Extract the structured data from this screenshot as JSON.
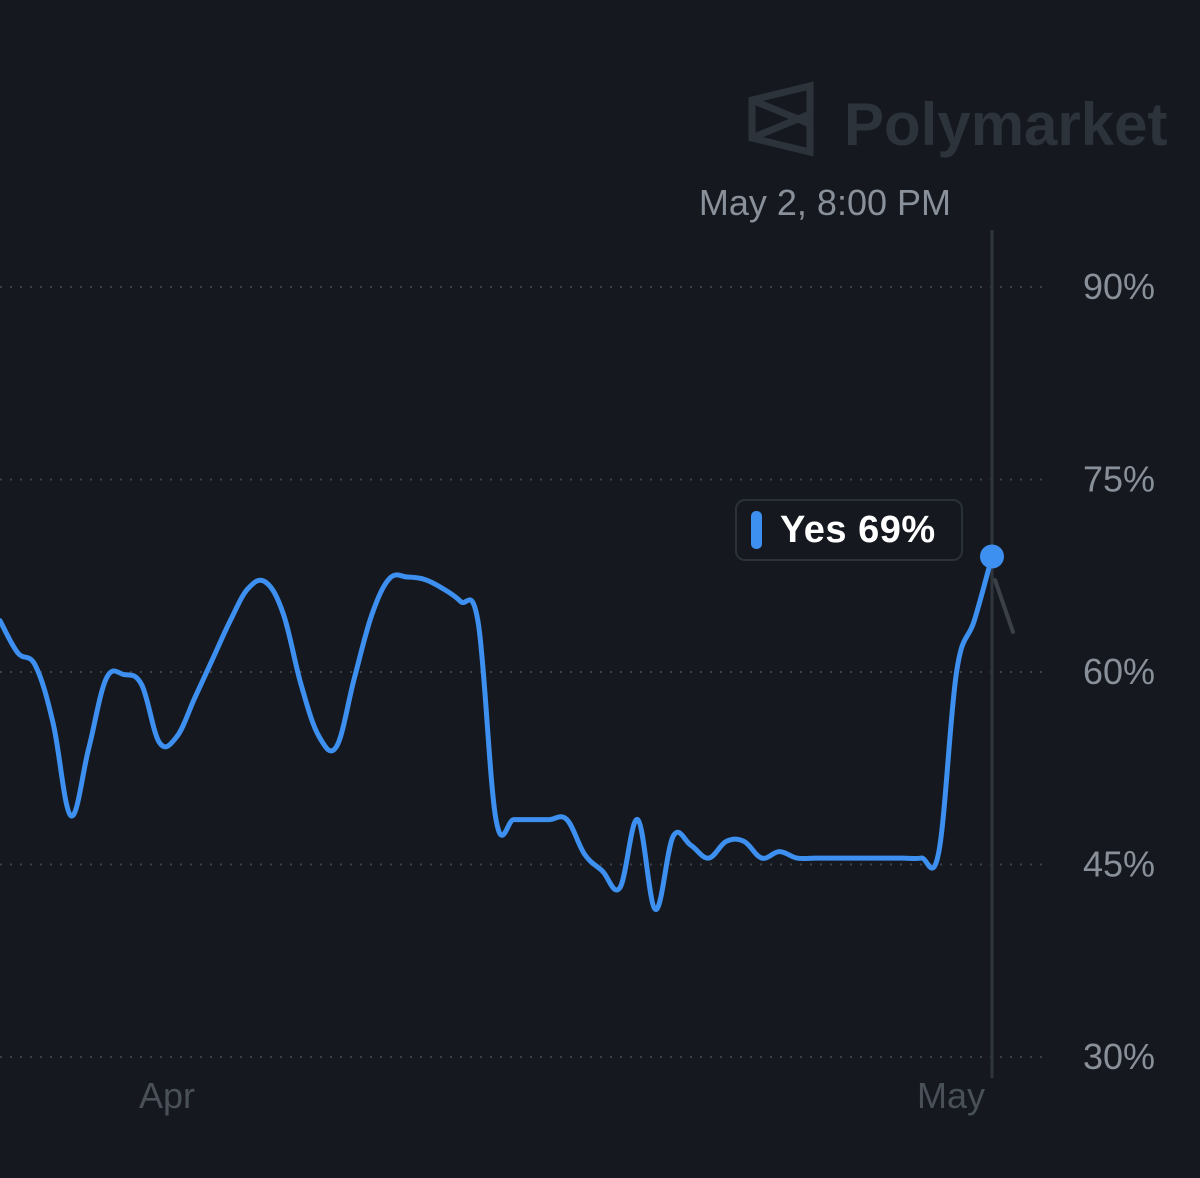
{
  "watermark": {
    "brand": "Polymarket",
    "icon": "polymarket-logo-icon"
  },
  "hover": {
    "date_label": "May 2, 8:00 PM"
  },
  "tooltip": {
    "label": "Yes 69%",
    "series": "Yes",
    "value": 69
  },
  "colors": {
    "background": "#15191f",
    "line": "#3d8ff0",
    "grid": "#3a4048",
    "tick_text": "#8a9099",
    "month_text": "#4a5058",
    "watermark": "#2d333b",
    "hover_text": "#8a9099",
    "crosshair": "#2f353d"
  },
  "chart_data": {
    "type": "line",
    "title": "",
    "xlabel": "",
    "ylabel": "",
    "ylim": [
      30,
      90
    ],
    "yticks": [
      90,
      75,
      60,
      45,
      30
    ],
    "ytick_labels": [
      "90%",
      "75%",
      "60%",
      "45%",
      "30%"
    ],
    "xticks": [
      {
        "label": "Apr",
        "date": "2024-04-01"
      },
      {
        "label": "May",
        "date": "2024-05-01"
      }
    ],
    "grid": true,
    "legend": "none",
    "series": [
      {
        "name": "Yes",
        "x": [
          "2024-03-27",
          "2024-03-27",
          "2024-03-28",
          "2024-03-28",
          "2024-03-28",
          "2024-03-28",
          "2024-03-28",
          "2024-03-29",
          "2024-03-29",
          "2024-03-29",
          "2024-03-30",
          "2024-03-31",
          "2024-04-01",
          "2024-04-02",
          "2024-04-03",
          "2024-04-04",
          "2024-04-05",
          "2024-04-06",
          "2024-04-07",
          "2024-04-08",
          "2024-04-09",
          "2024-04-10",
          "2024-04-11",
          "2024-04-11",
          "2024-04-12",
          "2024-04-13",
          "2024-04-14",
          "2024-04-15",
          "2024-04-16",
          "2024-04-17",
          "2024-04-18",
          "2024-04-19",
          "2024-04-20",
          "2024-04-21",
          "2024-04-21",
          "2024-04-22",
          "2024-04-22",
          "2024-04-23",
          "2024-04-24",
          "2024-04-25",
          "2024-04-25",
          "2024-04-26",
          "2024-04-26",
          "2024-04-26",
          "2024-04-27",
          "2024-04-27",
          "2024-04-27",
          "2024-04-28",
          "2024-04-28",
          "2024-04-28",
          "2024-04-29",
          "2024-04-29",
          "2024-04-29",
          "2024-04-30",
          "2024-05-01",
          "2024-05-01",
          "2024-05-02"
        ],
        "values": [
          64,
          61.5,
          60.5,
          56,
          48.8,
          54,
          59.5,
          59.8,
          59,
          54.5,
          55,
          58,
          61,
          64,
          66.5,
          67,
          64.5,
          59,
          55,
          54.2,
          59.5,
          64.5,
          67.3,
          67.4,
          67.2,
          66.5,
          65.5,
          63.8,
          48.5,
          48.5,
          48.5,
          48.5,
          48.5,
          45.8,
          44.5,
          43.2,
          48.5,
          41.5,
          47.2,
          46.5,
          45.5,
          46.8,
          46.8,
          45.5,
          46.0,
          45.5,
          45.5,
          45.5,
          45.5,
          45.5,
          45.5,
          45.5,
          45.5,
          46.0,
          60.0,
          64.0,
          69
        ]
      }
    ]
  }
}
